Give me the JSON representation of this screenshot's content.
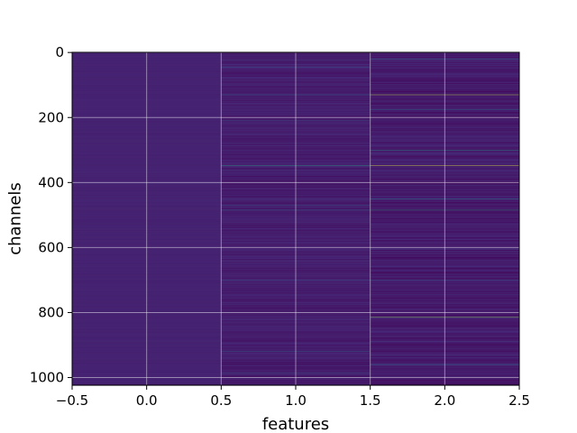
{
  "chart_data": {
    "type": "heatmap",
    "title": "",
    "xlabel": "features",
    "ylabel": "channels",
    "xlim": [
      -0.5,
      2.5
    ],
    "ylim": [
      1023.5,
      -0.5
    ],
    "y_inverted": true,
    "grid": true,
    "x_ticks": [
      -0.5,
      0.0,
      0.5,
      1.0,
      1.5,
      2.0,
      2.5
    ],
    "x_tick_labels": [
      "−0.5",
      "0.0",
      "0.5",
      "1.0",
      "1.5",
      "2.0",
      "2.5"
    ],
    "y_ticks": [
      0,
      200,
      400,
      600,
      800,
      1000
    ],
    "y_tick_labels": [
      "0",
      "200",
      "400",
      "600",
      "800",
      "1000"
    ],
    "n_channels": 1024,
    "colormap": "viridis",
    "value_range": [
      0,
      1
    ],
    "columns": [
      {
        "feature": 0,
        "base": 0.1,
        "variation": 0.015,
        "highlights": []
      },
      {
        "feature": 1,
        "base": 0.07,
        "variation": 0.09,
        "highlights": [
          {
            "channel": 45,
            "value": 0.32
          },
          {
            "channel": 130,
            "value": 0.38
          },
          {
            "channel": 210,
            "value": 0.3
          },
          {
            "channel": 348,
            "value": 0.6
          },
          {
            "channel": 470,
            "value": 0.33
          },
          {
            "channel": 485,
            "value": 0.38
          },
          {
            "channel": 700,
            "value": 0.28
          },
          {
            "channel": 920,
            "value": 0.35
          },
          {
            "channel": 985,
            "value": 0.3
          }
        ]
      },
      {
        "feature": 2,
        "base": 0.06,
        "variation": 0.11,
        "highlights": [
          {
            "channel": 20,
            "value": 0.42
          },
          {
            "channel": 130,
            "value": 0.92
          },
          {
            "channel": 175,
            "value": 0.4
          },
          {
            "channel": 300,
            "value": 0.55
          },
          {
            "channel": 348,
            "value": 0.97
          },
          {
            "channel": 450,
            "value": 0.5
          },
          {
            "channel": 485,
            "value": 0.62
          },
          {
            "channel": 700,
            "value": 0.32
          },
          {
            "channel": 815,
            "value": 0.85
          },
          {
            "channel": 960,
            "value": 0.4
          }
        ]
      }
    ]
  }
}
